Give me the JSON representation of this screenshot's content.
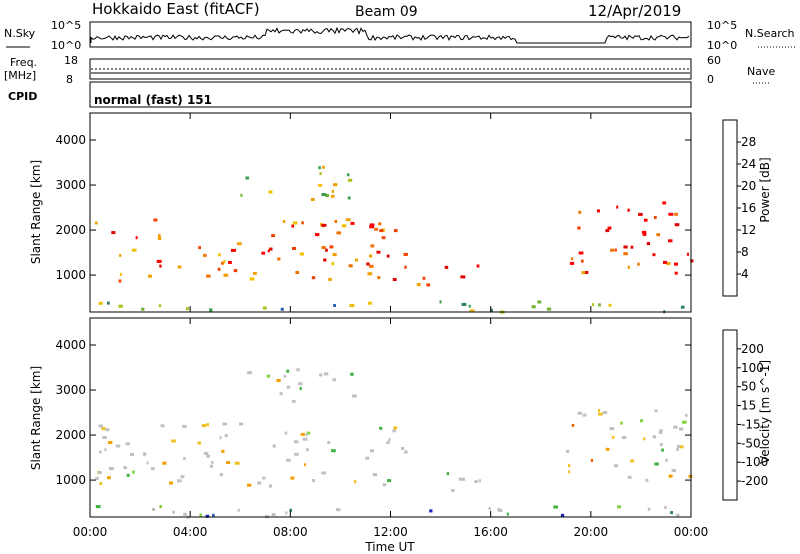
{
  "header": {
    "station": "Hokkaido East (fitACF)",
    "beam": "Beam 09",
    "date": "12/Apr/2019"
  },
  "noise_panel": {
    "left_label": "N.Sky",
    "right_label": "N.Search",
    "left_ticks": [
      "10^5",
      "10^0"
    ],
    "right_ticks": [
      "10^5",
      "10^0"
    ]
  },
  "freq_panel": {
    "left_label": "Freq.",
    "left_unit": "[MHz]",
    "left_ticks": [
      "18",
      "8"
    ],
    "right_label": "Nave",
    "right_ticks": [
      "60",
      "0"
    ]
  },
  "cpid_panel": {
    "label": "CPID",
    "value": "normal (fast) 151"
  },
  "chart_data": [
    {
      "type": "heatmap",
      "parameter": "Power",
      "ylabel": "Slant Range [km]",
      "xlabel": "Time UT",
      "ylim": [
        180,
        4600
      ],
      "y_ticks": [
        "4000",
        "3000",
        "2000",
        "1000"
      ],
      "x_ticks": [
        "00:00",
        "04:00",
        "08:00",
        "12:00",
        "16:00",
        "20:00",
        "00:00"
      ],
      "colorbar": {
        "label": "Power [dB]",
        "ticks": [
          "28",
          "24",
          "20",
          "16",
          "12",
          "8",
          "4"
        ],
        "colors": [
          "#2020ff",
          "#2e5fb0",
          "#2f7f60",
          "#3aa050",
          "#70b030",
          "#b0c020",
          "#f0c000",
          "#f0a000",
          "#f07000",
          "#f04000",
          "#e00000",
          "#ff0000"
        ]
      },
      "regions": [
        {
          "t0": 0.2,
          "t1": 12.6,
          "r0": 900,
          "r1": 2300,
          "level": 0.75
        },
        {
          "t0": 6.0,
          "t1": 10.5,
          "r0": 2700,
          "r1": 3500,
          "level": 0.45
        },
        {
          "t0": 12.9,
          "t1": 15.6,
          "r0": 800,
          "r1": 1300,
          "level": 0.8
        },
        {
          "t0": 19.0,
          "t1": 24.0,
          "r0": 1000,
          "r1": 2700,
          "level": 0.85
        },
        {
          "t0": 0.0,
          "t1": 24.0,
          "r0": 200,
          "r1": 450,
          "level": 0.35
        }
      ]
    },
    {
      "type": "heatmap",
      "parameter": "Velocity",
      "ylabel": "Slant Range [km]",
      "xlabel": "Time UT",
      "ylim": [
        180,
        4600
      ],
      "y_ticks": [
        "4000",
        "3000",
        "2000",
        "1000"
      ],
      "x_ticks": [
        "00:00",
        "04:00",
        "08:00",
        "12:00",
        "16:00",
        "20:00",
        "00:00"
      ],
      "colorbar": {
        "label": "Velocity [m s^-1]",
        "ticks": [
          "200",
          "100",
          "50",
          "15",
          "-15",
          "-50",
          "-100",
          "-200"
        ],
        "colors": [
          "#2020c0",
          "#2e5fb0",
          "#2f8050",
          "#40b040",
          "#80d040",
          "#c0c0c0",
          "#f0c020",
          "#f0a000",
          "#f06000",
          "#f03000",
          "#e00000"
        ]
      },
      "regions": [
        {
          "t0": 0.2,
          "t1": 12.6,
          "r0": 900,
          "r1": 2300,
          "level": 0.5
        },
        {
          "t0": 6.0,
          "t1": 10.5,
          "r0": 2700,
          "r1": 3500,
          "level": 0.5
        },
        {
          "t0": 12.9,
          "t1": 15.6,
          "r0": 800,
          "r1": 1300,
          "level": 0.5
        },
        {
          "t0": 19.0,
          "t1": 24.0,
          "r0": 1000,
          "r1": 2700,
          "level": 0.55
        },
        {
          "t0": 0.0,
          "t1": 24.0,
          "r0": 200,
          "r1": 450,
          "level": 0.2
        }
      ]
    }
  ]
}
